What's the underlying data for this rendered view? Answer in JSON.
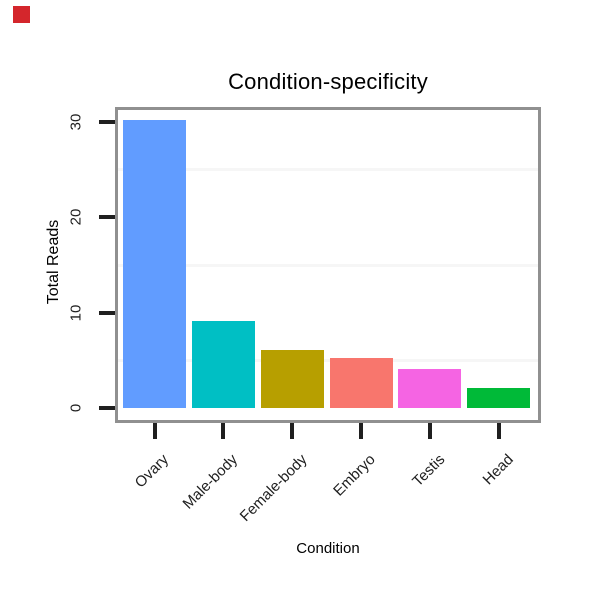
{
  "marker": {
    "color": "#d4262c"
  },
  "style": {
    "background": "#ffffff",
    "panel_border_color": "#909090",
    "tick_color": "#1f1f1f",
    "tick_label_color": "#1f1f1f",
    "title_color": "#000000",
    "minor_grid_color": "#f6f6f6"
  },
  "chart_data": {
    "type": "bar",
    "title": "Condition-specificity",
    "xlabel": "Condition",
    "ylabel": "Total Reads",
    "categories": [
      "Ovary",
      "Male-body",
      "Female-body",
      "Embryo",
      "Testis",
      "Head"
    ],
    "values": [
      30.2,
      9.1,
      6.1,
      5.2,
      4.1,
      2.1
    ],
    "bar_colors": [
      "#619CFF",
      "#00BFC4",
      "#B79F00",
      "#F8766D",
      "#F564E3",
      "#00BA38"
    ],
    "ytick_values": [
      0,
      10,
      20,
      30
    ],
    "ytick_labels": [
      "0",
      "10",
      "20",
      "30"
    ],
    "minor_gridlines": [
      5,
      15,
      25
    ],
    "ylim": [
      0,
      31.6
    ],
    "grid": "minor-horizontal-only",
    "legend": "none"
  }
}
